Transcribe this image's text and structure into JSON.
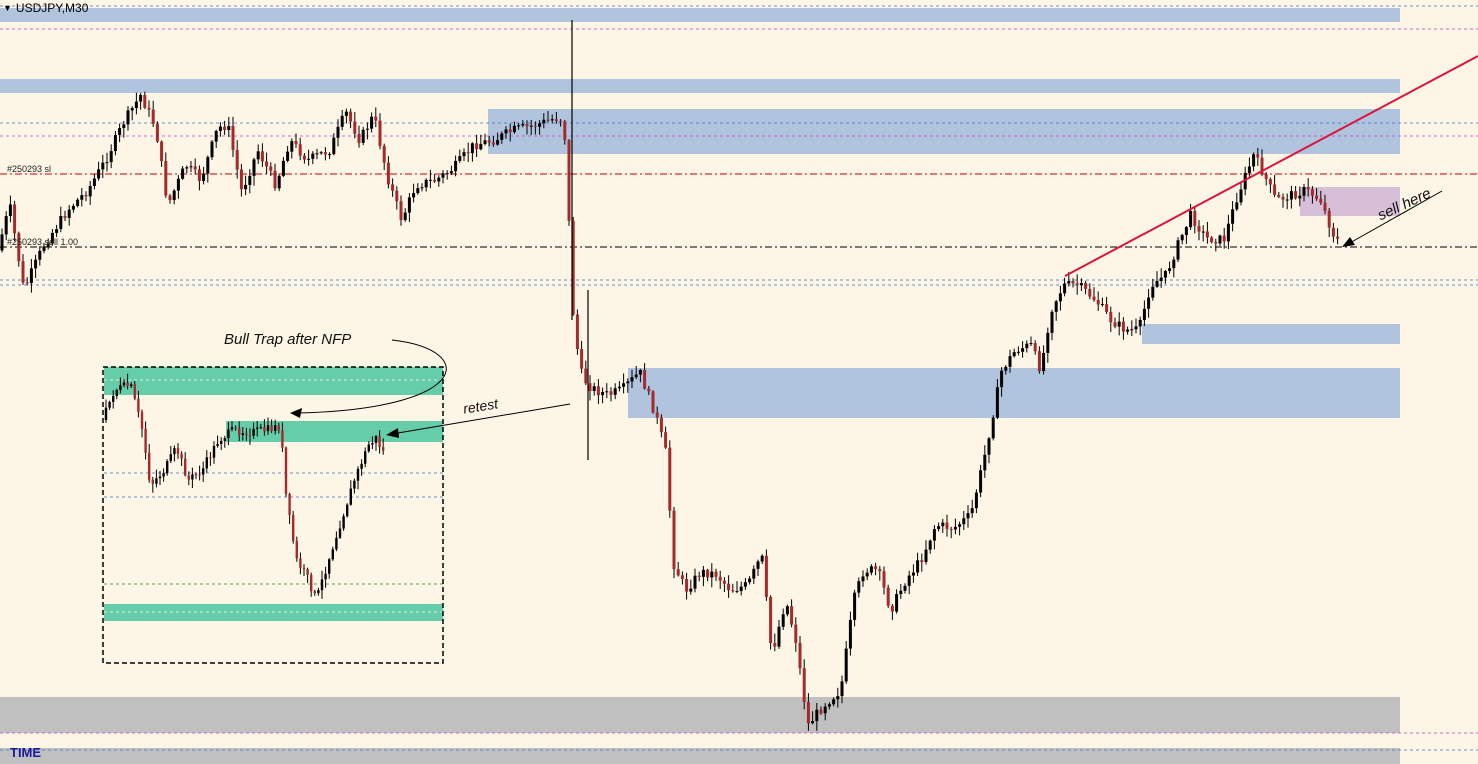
{
  "window": {
    "symbol_label": "USDJPY,M30",
    "menu_icon": "triangle-down-icon"
  },
  "axis": {
    "time_label": "TIME"
  },
  "orders": {
    "sl_label": "#250293 sl",
    "sell_label": "#250293 sell 1.00"
  },
  "annotations": {
    "bull_trap": "Bull Trap after NFP",
    "retest": "retest",
    "sell_here": "sell here"
  },
  "colors": {
    "background": "#fdf5e6",
    "supply_demand_zone": "#b0c4de",
    "inset_zone": "#66cdaa",
    "sell_zone": "#d8bfd8",
    "bottom_zone": "#c0c0c0",
    "trendline": "#dc143c",
    "sl_line": "#cc0000",
    "bull_candle": "#000000",
    "bear_candle": "#a52a2a"
  },
  "chart_data": {
    "type": "candlestick",
    "symbol": "USDJPY",
    "timeframe": "M30",
    "xlabel": "TIME",
    "grid": false,
    "price_scale_visible": false,
    "path": [
      [
        0,
        258
      ],
      [
        14,
        205
      ],
      [
        28,
        290
      ],
      [
        48,
        245
      ],
      [
        72,
        210
      ],
      [
        92,
        190
      ],
      [
        110,
        160
      ],
      [
        128,
        122
      ],
      [
        145,
        95
      ],
      [
        160,
        128
      ],
      [
        172,
        205
      ],
      [
        190,
        165
      ],
      [
        205,
        180
      ],
      [
        222,
        128
      ],
      [
        232,
        125
      ],
      [
        246,
        192
      ],
      [
        262,
        150
      ],
      [
        280,
        185
      ],
      [
        294,
        140
      ],
      [
        312,
        160
      ],
      [
        334,
        150
      ],
      [
        350,
        112
      ],
      [
        364,
        140
      ],
      [
        378,
        115
      ],
      [
        392,
        178
      ],
      [
        406,
        220
      ],
      [
        420,
        185
      ],
      [
        440,
        180
      ],
      [
        458,
        168
      ],
      [
        478,
        145
      ],
      [
        498,
        140
      ],
      [
        518,
        130
      ],
      [
        540,
        125
      ],
      [
        560,
        118
      ],
      [
        568,
        120
      ],
      [
        572,
        190
      ],
      [
        576,
        300
      ],
      [
        584,
        370
      ],
      [
        592,
        385
      ],
      [
        600,
        390
      ],
      [
        612,
        395
      ],
      [
        626,
        390
      ],
      [
        644,
        372
      ],
      [
        660,
        415
      ],
      [
        672,
        460
      ],
      [
        676,
        560
      ],
      [
        690,
        590
      ],
      [
        705,
        572
      ],
      [
        720,
        574
      ],
      [
        735,
        590
      ],
      [
        752,
        585
      ],
      [
        766,
        555
      ],
      [
        776,
        655
      ],
      [
        790,
        600
      ],
      [
        800,
        640
      ],
      [
        812,
        725
      ],
      [
        828,
        705
      ],
      [
        845,
        690
      ],
      [
        858,
        600
      ],
      [
        868,
        570
      ],
      [
        882,
        570
      ],
      [
        895,
        610
      ],
      [
        910,
        580
      ],
      [
        925,
        560
      ],
      [
        940,
        525
      ],
      [
        958,
        528
      ],
      [
        975,
        515
      ],
      [
        988,
        460
      ],
      [
        996,
        420
      ],
      [
        1006,
        370
      ],
      [
        1020,
        350
      ],
      [
        1035,
        345
      ],
      [
        1045,
        370
      ],
      [
        1055,
        310
      ],
      [
        1068,
        285
      ],
      [
        1082,
        285
      ],
      [
        1100,
        300
      ],
      [
        1115,
        320
      ],
      [
        1130,
        330
      ],
      [
        1143,
        330
      ],
      [
        1155,
        285
      ],
      [
        1170,
        275
      ],
      [
        1182,
        245
      ],
      [
        1195,
        215
      ],
      [
        1210,
        238
      ],
      [
        1228,
        240
      ],
      [
        1242,
        195
      ],
      [
        1258,
        155
      ],
      [
        1266,
        170
      ],
      [
        1280,
        200
      ],
      [
        1296,
        195
      ],
      [
        1310,
        190
      ],
      [
        1325,
        200
      ],
      [
        1332,
        220
      ],
      [
        1340,
        240
      ]
    ],
    "inset_path": [
      [
        106,
        420
      ],
      [
        118,
        390
      ],
      [
        134,
        385
      ],
      [
        146,
        430
      ],
      [
        154,
        485
      ],
      [
        168,
        470
      ],
      [
        180,
        448
      ],
      [
        192,
        480
      ],
      [
        206,
        470
      ],
      [
        222,
        440
      ],
      [
        238,
        430
      ],
      [
        254,
        432
      ],
      [
        270,
        430
      ],
      [
        284,
        426
      ],
      [
        290,
        500
      ],
      [
        300,
        560
      ],
      [
        312,
        580
      ],
      [
        320,
        600
      ],
      [
        332,
        560
      ],
      [
        345,
        520
      ],
      [
        358,
        480
      ],
      [
        372,
        445
      ],
      [
        380,
        438
      ],
      [
        386,
        452
      ]
    ]
  }
}
